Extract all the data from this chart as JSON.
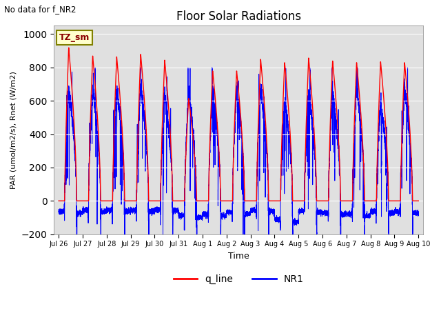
{
  "title": "Floor Solar Radiations",
  "xlabel": "Time",
  "ylabel": "PAR (umol/m2/s), Rnet (W/m2)",
  "annotation_text": "No data for f_NR2",
  "legend_box_text": "TZ_sm",
  "ylim": [
    -200,
    1050
  ],
  "yticks": [
    -200,
    0,
    200,
    400,
    600,
    800,
    1000
  ],
  "q_line_color": "red",
  "NR1_color": "blue",
  "bg_color": "#e0e0e0",
  "days_total": 15,
  "q_line_peaks": [
    920,
    870,
    865,
    880,
    845,
    615,
    780,
    780,
    850,
    830,
    858,
    840,
    830,
    835,
    830
  ],
  "NR1_peaks": [
    680,
    670,
    680,
    690,
    630,
    660,
    660,
    660,
    680,
    610,
    660,
    650,
    680,
    590,
    670
  ],
  "NR1_neg_troughs": [
    -80,
    -70,
    -70,
    -70,
    -65,
    -110,
    -100,
    -85,
    -70,
    -140,
    -75,
    -90,
    -100,
    -80,
    -80
  ],
  "days_list": [
    "Jul 26",
    "Jul 27",
    "Jul 28",
    "Jul 29",
    "Jul 30",
    "Jul 31",
    "Aug 1",
    "Aug 2",
    "Aug 3",
    "Aug 4",
    "Aug 5",
    "Aug 6",
    "Aug 7",
    "Aug 8",
    "Aug 9",
    "Aug 10"
  ]
}
